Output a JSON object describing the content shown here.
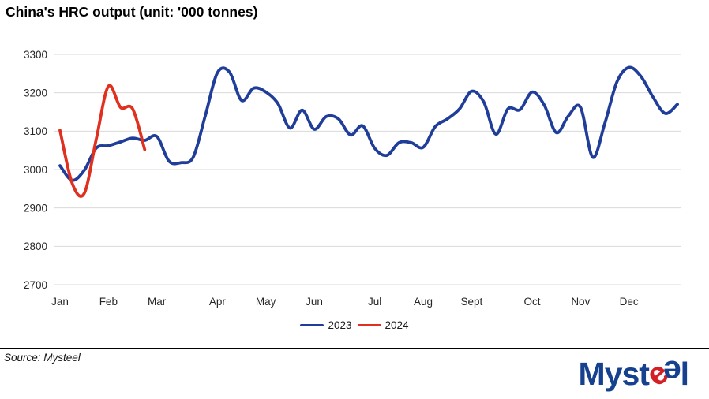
{
  "title": "China's HRC output (unit: '000 tonnes)",
  "source_note": "Source: Mysteel",
  "logo": {
    "parts": [
      "Myst",
      "e",
      "e",
      "l"
    ],
    "blue": "#16418f",
    "red": "#d41f26"
  },
  "chart_data": {
    "type": "line",
    "title": "China's HRC output (unit: '000 tonnes)",
    "unit": "'000 tonnes",
    "x": {
      "granularity": "weekly",
      "weeks_total": 52,
      "tick_labels": [
        "Jan",
        "Feb",
        "Mar",
        "Apr",
        "May",
        "Jun",
        "Jul",
        "Aug",
        "Sept",
        "Oct",
        "Nov",
        "Dec"
      ],
      "month_start_week_index": [
        0,
        4,
        8,
        13,
        17,
        21,
        26,
        30,
        34,
        39,
        43,
        47
      ]
    },
    "y": {
      "ticks": [
        2700,
        2800,
        2900,
        3000,
        3100,
        3200,
        3300
      ],
      "range": [
        2700,
        3300
      ]
    },
    "grid": true,
    "legend_position": "bottom-center",
    "grid_color": "#d9d9d9",
    "axis_text_color": "#262626",
    "series": [
      {
        "name": "2023",
        "color": "#1f3d99",
        "values": [
          3010,
          2972,
          2998,
          3056,
          3062,
          3072,
          3082,
          3076,
          3086,
          3022,
          3018,
          3032,
          3140,
          3252,
          3254,
          3180,
          3212,
          3202,
          3172,
          3108,
          3155,
          3105,
          3138,
          3132,
          3090,
          3114,
          3055,
          3037,
          3070,
          3070,
          3058,
          3112,
          3132,
          3158,
          3204,
          3176,
          3092,
          3158,
          3156,
          3202,
          3168,
          3096,
          3140,
          3162,
          3032,
          3120,
          3228,
          3266,
          3242,
          3188,
          3146,
          3170
        ]
      },
      {
        "name": "2024",
        "color": "#e0301f",
        "values": [
          3102,
          2965,
          2938,
          3080,
          3217,
          3162,
          3158,
          3052
        ]
      }
    ]
  }
}
